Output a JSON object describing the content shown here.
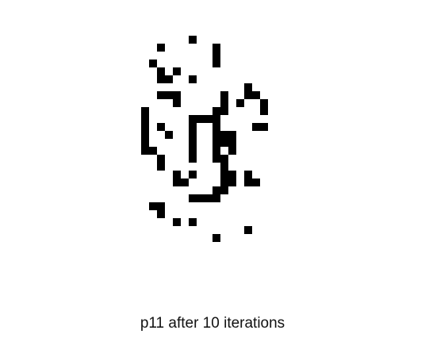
{
  "caption": "p11 after 10 iterations",
  "colors": {
    "background": "#ffffff",
    "cell": "#000000"
  },
  "grid": {
    "on_cells": [
      [
        12,
        0
      ],
      [
        8,
        1
      ],
      [
        15,
        1
      ],
      [
        15,
        2
      ],
      [
        7,
        3
      ],
      [
        15,
        3
      ],
      [
        8,
        4
      ],
      [
        10,
        4
      ],
      [
        8,
        5
      ],
      [
        9,
        5
      ],
      [
        12,
        5
      ],
      [
        19,
        6
      ],
      [
        8,
        7
      ],
      [
        9,
        7
      ],
      [
        10,
        7
      ],
      [
        16,
        7
      ],
      [
        19,
        7
      ],
      [
        20,
        7
      ],
      [
        10,
        8
      ],
      [
        16,
        8
      ],
      [
        18,
        8
      ],
      [
        21,
        8
      ],
      [
        6,
        9
      ],
      [
        15,
        9
      ],
      [
        16,
        9
      ],
      [
        21,
        9
      ],
      [
        6,
        10
      ],
      [
        12,
        10
      ],
      [
        13,
        10
      ],
      [
        14,
        10
      ],
      [
        15,
        10
      ],
      [
        6,
        11
      ],
      [
        8,
        11
      ],
      [
        12,
        11
      ],
      [
        15,
        11
      ],
      [
        20,
        11
      ],
      [
        21,
        11
      ],
      [
        6,
        12
      ],
      [
        9,
        12
      ],
      [
        12,
        12
      ],
      [
        15,
        12
      ],
      [
        16,
        12
      ],
      [
        17,
        12
      ],
      [
        6,
        13
      ],
      [
        12,
        13
      ],
      [
        15,
        13
      ],
      [
        16,
        13
      ],
      [
        17,
        13
      ],
      [
        6,
        14
      ],
      [
        7,
        14
      ],
      [
        12,
        14
      ],
      [
        15,
        14
      ],
      [
        17,
        14
      ],
      [
        8,
        15
      ],
      [
        12,
        15
      ],
      [
        15,
        15
      ],
      [
        16,
        15
      ],
      [
        8,
        16
      ],
      [
        16,
        16
      ],
      [
        10,
        17
      ],
      [
        12,
        17
      ],
      [
        16,
        17
      ],
      [
        17,
        17
      ],
      [
        19,
        17
      ],
      [
        10,
        18
      ],
      [
        11,
        18
      ],
      [
        16,
        18
      ],
      [
        17,
        18
      ],
      [
        19,
        18
      ],
      [
        20,
        18
      ],
      [
        15,
        19
      ],
      [
        16,
        19
      ],
      [
        12,
        20
      ],
      [
        13,
        20
      ],
      [
        14,
        20
      ],
      [
        15,
        20
      ],
      [
        7,
        21
      ],
      [
        8,
        21
      ],
      [
        8,
        22
      ],
      [
        10,
        23
      ],
      [
        12,
        23
      ],
      [
        19,
        24
      ],
      [
        15,
        25
      ]
    ]
  }
}
